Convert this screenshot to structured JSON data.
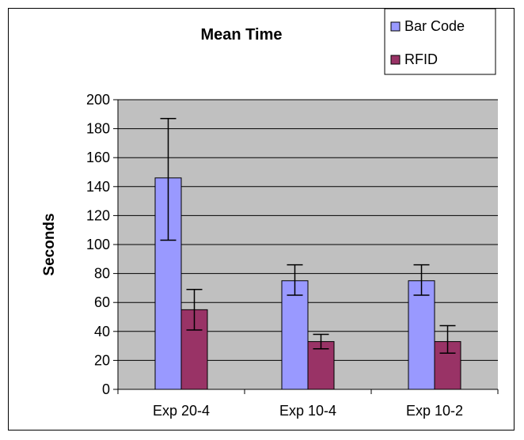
{
  "chart_data": {
    "type": "bar",
    "title": "Mean Time",
    "xlabel": "",
    "ylabel": "Seconds",
    "categories": [
      "Exp 20-4",
      "Exp 10-4",
      "Exp 10-2"
    ],
    "ylim": [
      0,
      200
    ],
    "yticks": [
      0,
      20,
      40,
      60,
      80,
      100,
      120,
      140,
      160,
      180,
      200
    ],
    "grid": true,
    "legend_position": "top-right",
    "series": [
      {
        "name": "Bar Code",
        "color": "#9999ff",
        "values": [
          146,
          75,
          75
        ],
        "error_low": [
          103,
          65,
          65
        ],
        "error_high": [
          187,
          86,
          86
        ]
      },
      {
        "name": "RFID",
        "color": "#993366",
        "values": [
          55,
          33,
          33
        ],
        "error_low": [
          41,
          28,
          25
        ],
        "error_high": [
          69,
          38,
          44
        ]
      }
    ]
  }
}
